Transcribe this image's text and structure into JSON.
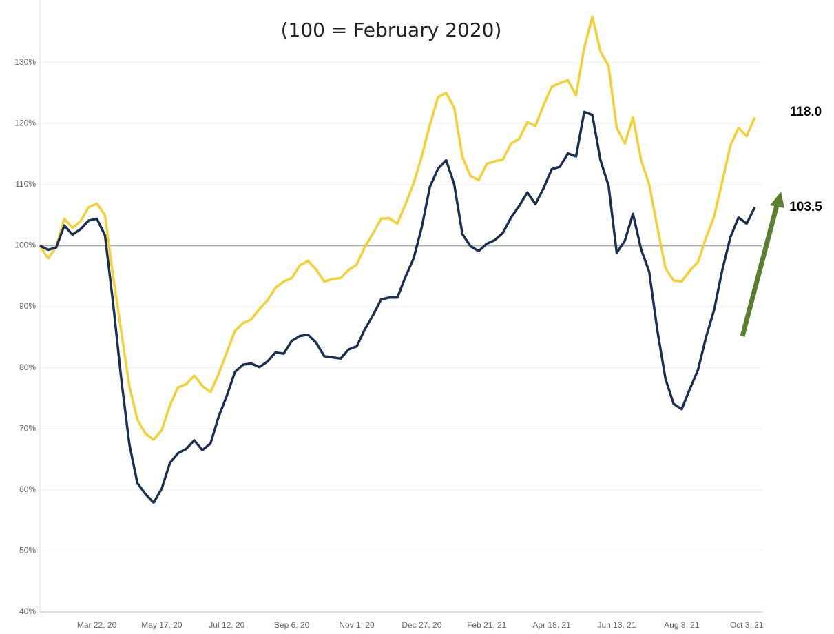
{
  "chart_data": {
    "type": "line",
    "subtitle": "(100 = February 2020)",
    "categories": [
      null,
      null,
      null,
      null,
      null,
      null,
      null,
      "Mar 22, 20",
      null,
      null,
      null,
      null,
      null,
      null,
      null,
      "May 17, 20",
      null,
      null,
      null,
      null,
      null,
      null,
      null,
      "Jul 12, 20",
      null,
      null,
      null,
      null,
      null,
      null,
      null,
      "Sep 6, 20",
      null,
      null,
      null,
      null,
      null,
      null,
      null,
      "Nov 1, 20",
      null,
      null,
      null,
      null,
      null,
      null,
      null,
      "Dec 27, 20",
      null,
      null,
      null,
      null,
      null,
      null,
      null,
      "Feb 21, 21",
      null,
      null,
      null,
      null,
      null,
      null,
      null,
      "Apr 18, 21",
      null,
      null,
      null,
      null,
      null,
      null,
      null,
      "Jun 13, 21",
      null,
      null,
      null,
      null,
      null,
      null,
      null,
      "Aug 8, 21",
      null,
      null,
      null,
      null,
      null,
      null,
      null,
      "Oct 3, 21",
      null
    ],
    "series": [
      {
        "color": "#f5d033",
        "values": [
          100,
          97.9,
          99.8,
          104.4,
          102.9,
          104,
          106.3,
          106.9,
          105,
          95,
          86,
          77,
          71.5,
          69.2,
          68.2,
          69.8,
          73.8,
          76.8,
          77.3,
          78.7,
          77,
          76,
          79,
          82.5,
          86,
          87.3,
          87.9,
          89.6,
          91,
          93.1,
          94.1,
          94.7,
          96.8,
          97.5,
          96.1,
          94.1,
          94.5,
          94.7,
          96,
          96.9,
          99.8,
          102,
          104.4,
          104.5,
          103.6,
          106.8,
          110.2,
          114.6,
          119.8,
          124.3,
          125,
          122.6,
          114.5,
          111.4,
          110.7,
          113.4,
          113.8,
          114.1,
          116.7,
          117.5,
          120.2,
          119.6,
          123,
          126,
          126.6,
          127.1,
          124.6,
          132.4,
          137.5,
          131.8,
          129.4,
          119.3,
          116.7,
          121,
          114,
          110,
          103,
          96.3,
          94.3,
          94.1,
          95.9,
          97.3,
          101.3,
          104.8,
          110.5,
          116.4,
          119.3,
          117.9,
          121
        ]
      },
      {
        "color": "#1b2f55",
        "values": [
          100,
          99.3,
          99.7,
          103.3,
          101.8,
          102.7,
          104.1,
          104.4,
          101.7,
          90.6,
          78.2,
          67.5,
          61.1,
          59.3,
          57.9,
          60.2,
          64.4,
          66,
          66.7,
          68.1,
          66.5,
          67.6,
          72,
          75.4,
          79.3,
          80.5,
          80.7,
          80.1,
          81,
          82.5,
          82.3,
          84.4,
          85.2,
          85.4,
          84.1,
          81.9,
          81.7,
          81.5,
          83,
          83.5,
          86.3,
          88.6,
          91.2,
          91.5,
          91.5,
          94.9,
          97.9,
          103,
          109.6,
          112.6,
          114,
          110,
          101.9,
          99.9,
          99.1,
          100.3,
          100.9,
          102.1,
          104.6,
          106.5,
          108.7,
          106.8,
          109.4,
          112.5,
          112.9,
          115.1,
          114.6,
          121.9,
          121.4,
          114,
          109.8,
          98.8,
          100.8,
          105.2,
          99.4,
          95.7,
          86.1,
          78.2,
          74.1,
          73.2,
          76.5,
          79.6,
          85,
          89.5,
          96,
          101.4,
          104.6,
          103.6,
          106.3
        ]
      }
    ],
    "ylim": [
      40,
      140
    ],
    "yticks": [
      {
        "value": 40,
        "label": "40%"
      },
      {
        "value": 50,
        "label": "50%"
      },
      {
        "value": 60,
        "label": "60%"
      },
      {
        "value": 70,
        "label": "70%"
      },
      {
        "value": 80,
        "label": "80%"
      },
      {
        "value": 90,
        "label": "90%"
      },
      {
        "value": 100,
        "label": "100%"
      },
      {
        "value": 110,
        "label": "110%"
      },
      {
        "value": 120,
        "label": "120%"
      },
      {
        "value": 130,
        "label": "130%"
      }
    ],
    "grid": true,
    "reference_line": 100,
    "annotations": [
      {
        "text": "118.0"
      },
      {
        "text": "103.5"
      }
    ]
  }
}
